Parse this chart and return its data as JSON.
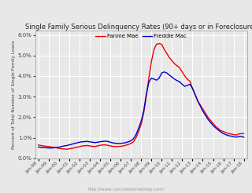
{
  "title": "Single Family Serious Delinquency Rates (90+ days or in Foreclosure)",
  "ylabel": "Percent of Total Number of Single-Family Loans",
  "watermark": "http://www.calculatedriskblog.com/",
  "legend_fannie": "Fannie Mae",
  "legend_freddie": "Freddie Mac",
  "fannie_color": "#ee0000",
  "freddie_color": "#0000cc",
  "background_color": "#e8e8e8",
  "plot_bg_color": "#e8e8e8",
  "grid_color": "#ffffff",
  "ylim": [
    0.0,
    0.062
  ],
  "yticks": [
    0.0,
    0.01,
    0.02,
    0.03,
    0.04,
    0.05,
    0.06
  ],
  "fannie_x": [
    1998.0,
    1998.25,
    1998.5,
    1998.75,
    1999.0,
    1999.25,
    1999.5,
    1999.75,
    2000.0,
    2000.25,
    2000.5,
    2000.75,
    2001.0,
    2001.25,
    2001.5,
    2001.75,
    2002.0,
    2002.25,
    2002.5,
    2002.75,
    2003.0,
    2003.25,
    2003.5,
    2003.75,
    2004.0,
    2004.25,
    2004.5,
    2004.75,
    2005.0,
    2005.25,
    2005.5,
    2005.75,
    2006.0,
    2006.25,
    2006.5,
    2006.75,
    2007.0,
    2007.25,
    2007.5,
    2007.75,
    2008.0,
    2008.25,
    2008.5,
    2008.75,
    2009.0,
    2009.25,
    2009.5,
    2009.75,
    2010.0,
    2010.25,
    2010.5,
    2010.75,
    2011.0,
    2011.25,
    2011.5,
    2011.75,
    2012.0,
    2012.25,
    2012.5,
    2012.75,
    2013.0,
    2013.25,
    2013.5,
    2013.75,
    2014.0,
    2014.25,
    2014.5,
    2014.75,
    2015.0,
    2015.25,
    2015.5,
    2015.75,
    2016.0,
    2016.25,
    2016.5,
    2016.75,
    2017.0,
    2017.25,
    2017.5,
    2017.75,
    2018.0
  ],
  "fannie_y": [
    0.0065,
    0.0062,
    0.006,
    0.0058,
    0.0057,
    0.0055,
    0.0053,
    0.0051,
    0.0048,
    0.0046,
    0.0045,
    0.0044,
    0.0046,
    0.0048,
    0.0051,
    0.0054,
    0.0056,
    0.006,
    0.0061,
    0.0062,
    0.006,
    0.0058,
    0.0057,
    0.006,
    0.0063,
    0.0065,
    0.0065,
    0.0063,
    0.006,
    0.0058,
    0.0057,
    0.0057,
    0.0058,
    0.006,
    0.0063,
    0.0067,
    0.0072,
    0.008,
    0.01,
    0.013,
    0.0165,
    0.022,
    0.03,
    0.039,
    0.047,
    0.053,
    0.0555,
    0.0558,
    0.0555,
    0.053,
    0.051,
    0.049,
    0.0475,
    0.046,
    0.045,
    0.044,
    0.042,
    0.04,
    0.0385,
    0.0375,
    0.034,
    0.031,
    0.028,
    0.026,
    0.024,
    0.022,
    0.02,
    0.0185,
    0.017,
    0.0155,
    0.0145,
    0.0135,
    0.013,
    0.0125,
    0.012,
    0.0118,
    0.0115,
    0.0113,
    0.0118,
    0.012,
    0.012
  ],
  "freddie_x": [
    1998.0,
    1998.25,
    1998.5,
    1998.75,
    1999.0,
    1999.25,
    1999.5,
    1999.75,
    2000.0,
    2000.25,
    2000.5,
    2000.75,
    2001.0,
    2001.25,
    2001.5,
    2001.75,
    2002.0,
    2002.25,
    2002.5,
    2002.75,
    2003.0,
    2003.25,
    2003.5,
    2003.75,
    2004.0,
    2004.25,
    2004.5,
    2004.75,
    2005.0,
    2005.25,
    2005.5,
    2005.75,
    2006.0,
    2006.25,
    2006.5,
    2006.75,
    2007.0,
    2007.25,
    2007.5,
    2007.75,
    2008.0,
    2008.25,
    2008.5,
    2008.75,
    2009.0,
    2009.25,
    2009.5,
    2009.75,
    2010.0,
    2010.25,
    2010.5,
    2010.75,
    2011.0,
    2011.25,
    2011.5,
    2011.75,
    2012.0,
    2012.25,
    2012.5,
    2012.75,
    2013.0,
    2013.25,
    2013.5,
    2013.75,
    2014.0,
    2014.25,
    2014.5,
    2014.75,
    2015.0,
    2015.25,
    2015.5,
    2015.75,
    2016.0,
    2016.25,
    2016.5,
    2016.75,
    2017.0,
    2017.25,
    2017.5,
    2017.75,
    2018.0
  ],
  "freddie_y": [
    0.0055,
    0.0053,
    0.0052,
    0.0051,
    0.005,
    0.005,
    0.0051,
    0.0052,
    0.0054,
    0.0057,
    0.006,
    0.0062,
    0.0065,
    0.0068,
    0.0072,
    0.0075,
    0.0078,
    0.008,
    0.0081,
    0.0082,
    0.008,
    0.0078,
    0.0076,
    0.0078,
    0.008,
    0.0082,
    0.0083,
    0.0082,
    0.0078,
    0.0075,
    0.0073,
    0.0072,
    0.0072,
    0.0074,
    0.0076,
    0.008,
    0.0085,
    0.0095,
    0.0115,
    0.0145,
    0.018,
    0.023,
    0.031,
    0.037,
    0.039,
    0.0385,
    0.038,
    0.039,
    0.0415,
    0.042,
    0.0415,
    0.0405,
    0.0395,
    0.0385,
    0.0378,
    0.0372,
    0.036,
    0.035,
    0.0355,
    0.036,
    0.034,
    0.031,
    0.028,
    0.0255,
    0.023,
    0.021,
    0.019,
    0.0175,
    0.016,
    0.0148,
    0.0138,
    0.0128,
    0.012,
    0.0115,
    0.011,
    0.0108,
    0.0105,
    0.0103,
    0.0105,
    0.0107,
    0.0102
  ]
}
